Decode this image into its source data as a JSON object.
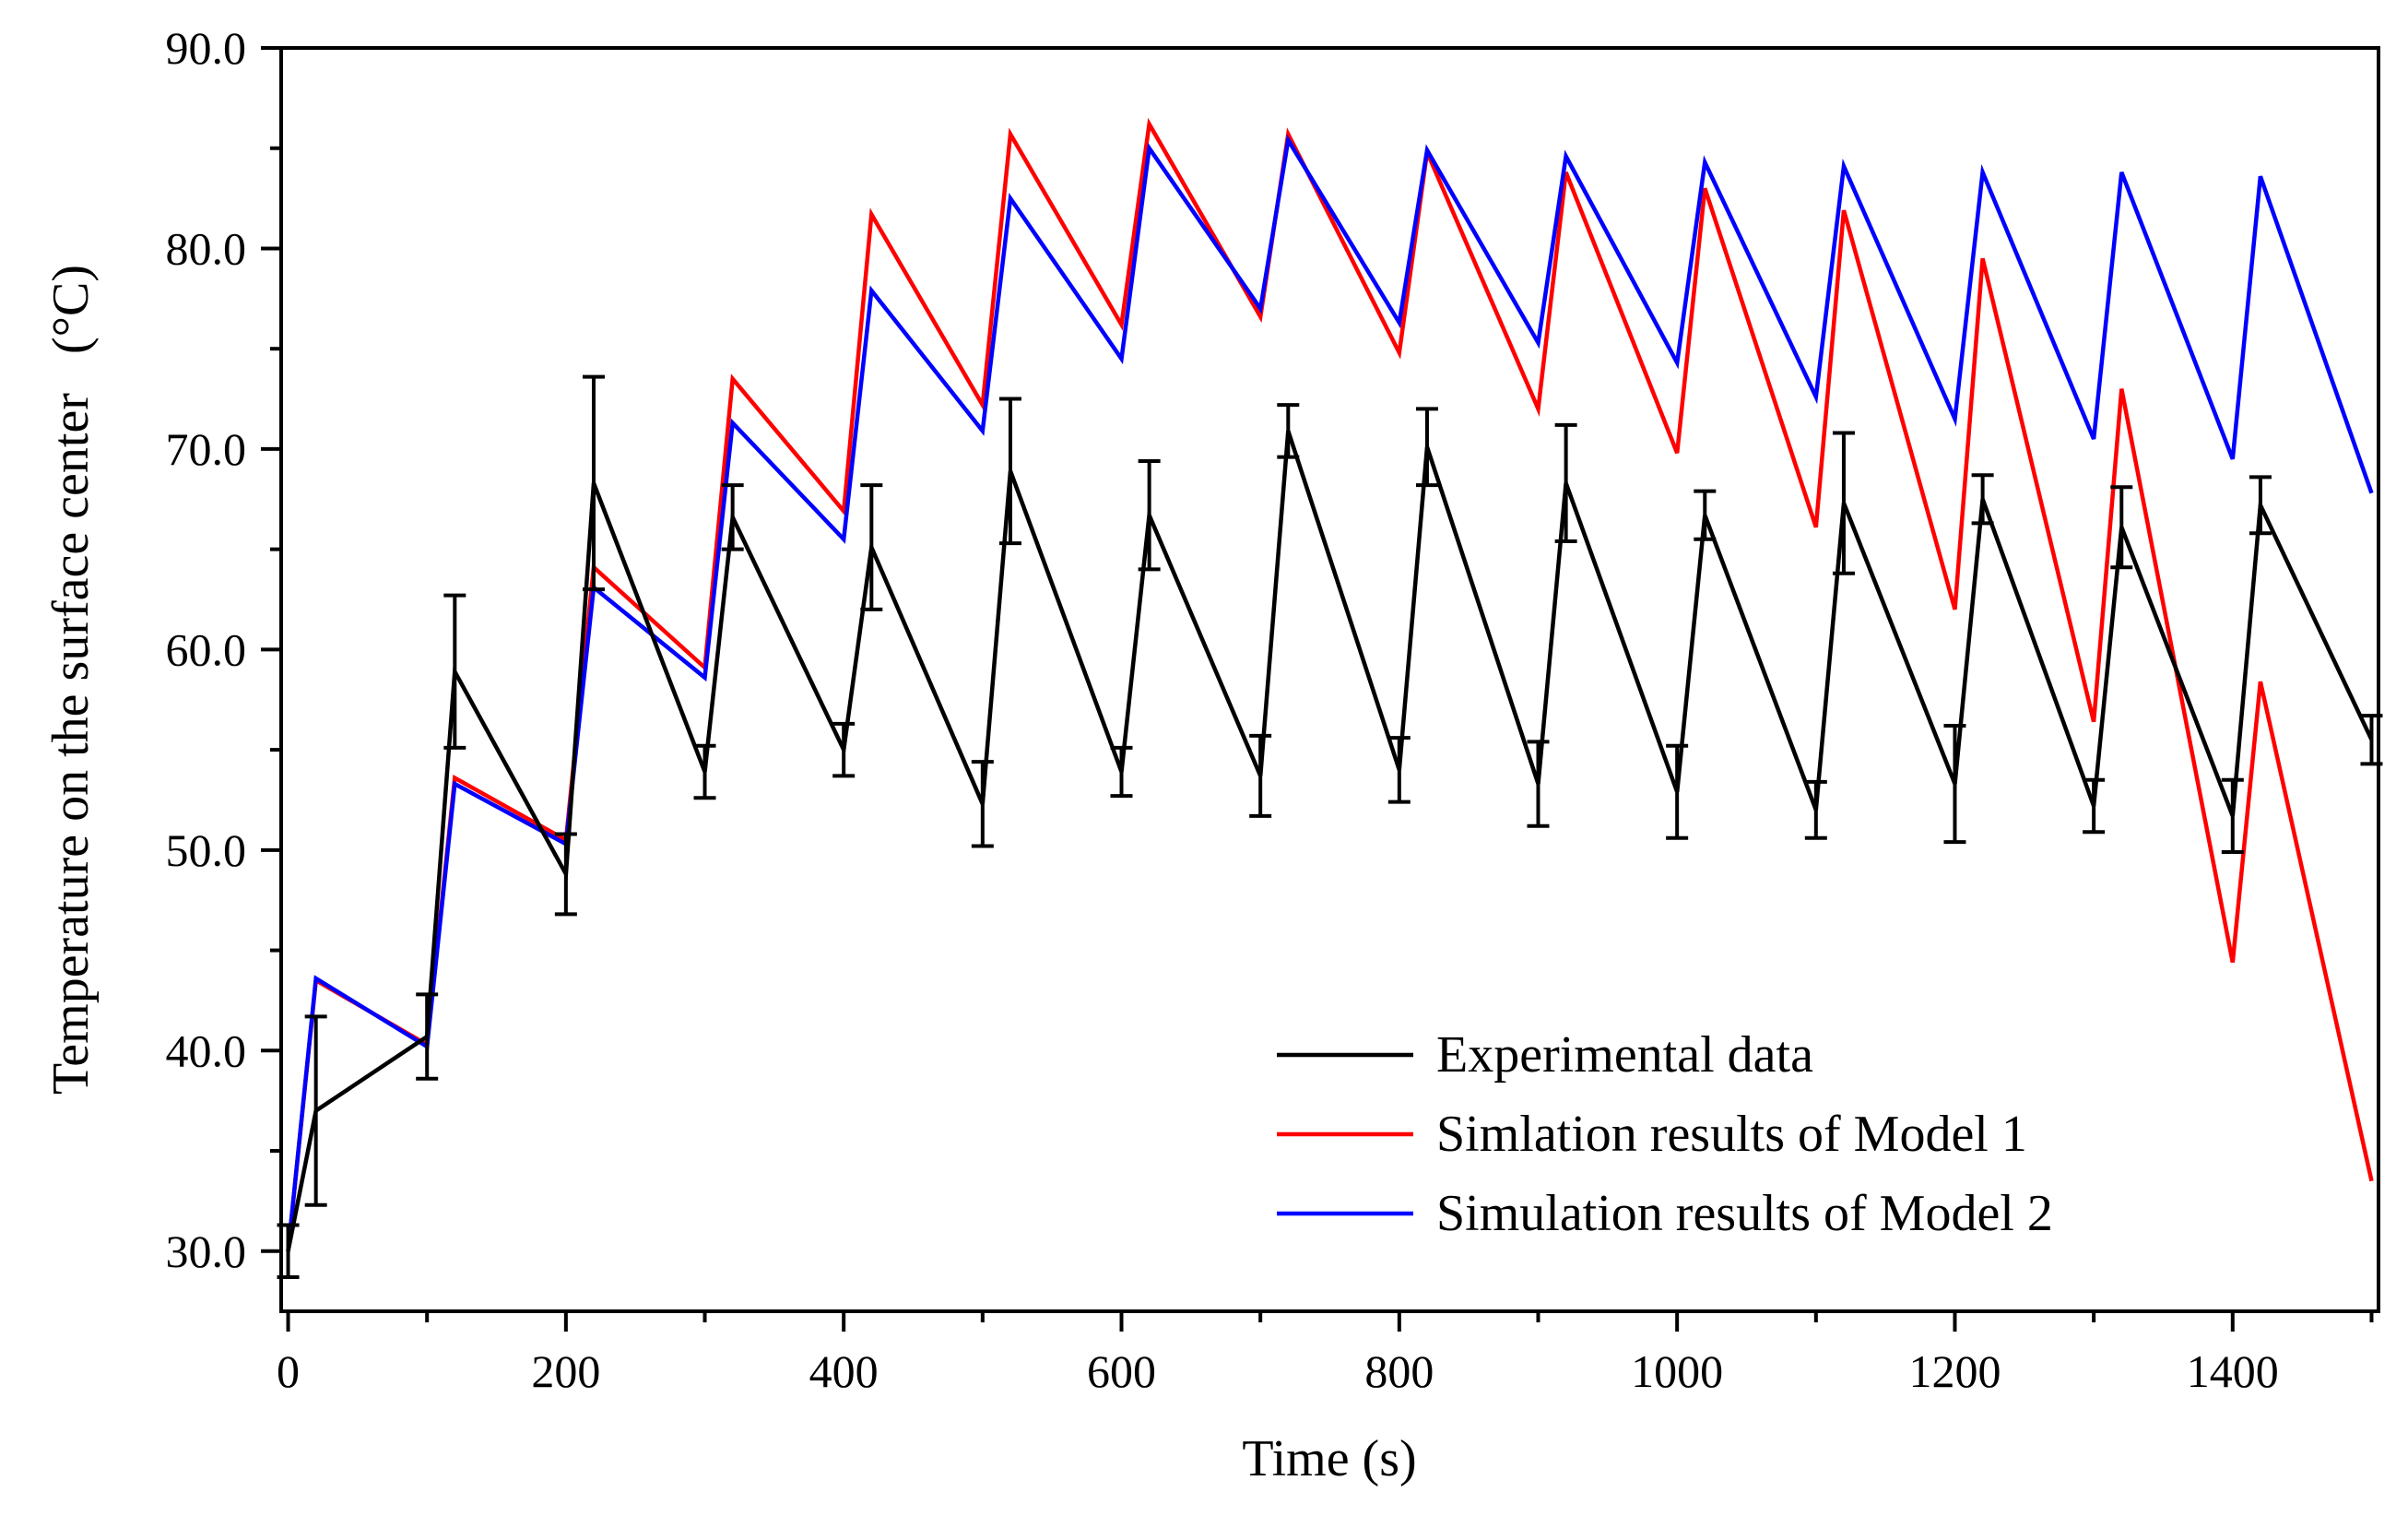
{
  "chart_data": {
    "type": "line",
    "title": "",
    "xlabel": "Time (s)",
    "ylabel": "Temperature on the surface center   (°C)",
    "xlim": [
      -5,
      1505
    ],
    "ylim": [
      27,
      90
    ],
    "xticks": [
      0,
      200,
      400,
      600,
      800,
      1000,
      1200,
      1400
    ],
    "xtick_labels": [
      "0",
      "200",
      "400",
      "600",
      "800",
      "1000",
      "1200",
      "1400"
    ],
    "yticks": [
      30,
      40,
      50,
      60,
      70,
      80,
      90
    ],
    "ytick_labels": [
      "30.0",
      "40.0",
      "50.0",
      "60.0",
      "70.0",
      "80.0",
      "90.0"
    ],
    "legend_position": "bottom-right",
    "series": [
      {
        "name": "Experimental data",
        "color": "#000000",
        "x": [
          0,
          20,
          100,
          120,
          200,
          220,
          300,
          320,
          400,
          420,
          500,
          520,
          600,
          620,
          700,
          720,
          800,
          820,
          900,
          920,
          1000,
          1020,
          1100,
          1120,
          1200,
          1220,
          1300,
          1320,
          1400,
          1420,
          1500
        ],
        "y": [
          30.0,
          37.0,
          40.7,
          58.9,
          48.8,
          68.3,
          53.9,
          66.6,
          55.0,
          65.1,
          52.3,
          68.9,
          53.9,
          66.7,
          53.7,
          70.9,
          54.0,
          70.1,
          53.3,
          68.3,
          52.9,
          66.7,
          52.0,
          67.3,
          53.3,
          67.5,
          52.2,
          66.1,
          51.7,
          67.2,
          55.5
        ],
        "error": [
          1.3,
          4.7,
          2.1,
          3.8,
          2.0,
          5.3,
          1.3,
          1.6,
          1.3,
          3.1,
          2.1,
          3.6,
          1.2,
          2.7,
          2.0,
          1.3,
          1.6,
          1.9,
          2.1,
          2.9,
          2.3,
          1.2,
          1.4,
          3.5,
          2.9,
          1.2,
          1.3,
          2.0,
          1.8,
          1.4,
          1.2
        ]
      },
      {
        "name": "Simlation results of Model 1",
        "color": "#ff0000",
        "x": [
          0,
          20,
          100,
          120,
          200,
          220,
          300,
          320,
          400,
          420,
          500,
          520,
          600,
          620,
          700,
          720,
          800,
          820,
          900,
          920,
          1000,
          1020,
          1100,
          1120,
          1200,
          1220,
          1300,
          1320,
          1400,
          1420,
          1500
        ],
        "y": [
          30.0,
          43.5,
          40.3,
          53.6,
          50.5,
          64.1,
          59.1,
          73.5,
          66.9,
          81.7,
          72.2,
          85.7,
          76.2,
          86.2,
          76.6,
          85.7,
          74.8,
          84.8,
          72.0,
          83.8,
          69.8,
          83.0,
          66.1,
          81.9,
          62.0,
          79.5,
          56.4,
          73.0,
          44.4,
          58.4,
          33.5
        ]
      },
      {
        "name": "Simulation results of Model 2",
        "color": "#0000ff",
        "x": [
          0,
          20,
          100,
          120,
          200,
          220,
          300,
          320,
          400,
          420,
          500,
          520,
          600,
          620,
          700,
          720,
          800,
          820,
          900,
          920,
          1000,
          1020,
          1100,
          1120,
          1200,
          1220,
          1300,
          1320,
          1400,
          1420,
          1500
        ],
        "y": [
          30.0,
          43.6,
          40.2,
          53.3,
          50.3,
          63.1,
          58.6,
          71.3,
          65.5,
          77.9,
          70.9,
          82.5,
          74.5,
          85.0,
          77.0,
          85.4,
          76.3,
          84.9,
          75.3,
          84.6,
          74.3,
          84.3,
          72.6,
          84.1,
          71.5,
          83.8,
          70.5,
          83.8,
          69.5,
          83.6,
          67.8
        ]
      }
    ]
  }
}
